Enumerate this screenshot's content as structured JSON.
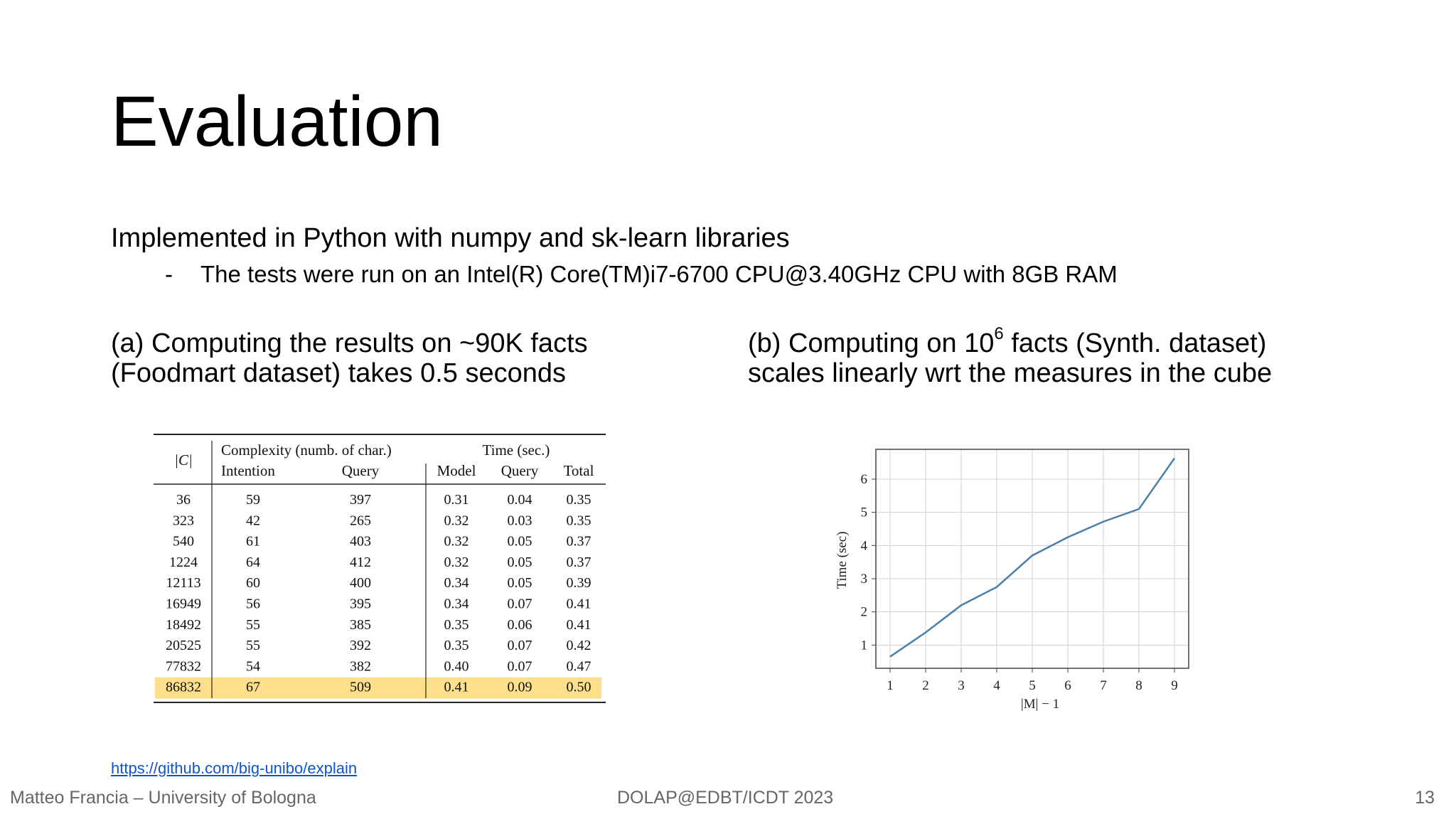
{
  "slide": {
    "title": "Evaluation",
    "intro": "Implemented in Python with numpy and sk-learn libraries",
    "bullet_dash": "-",
    "bullet": "The tests were run on an Intel(R) Core(TM)i7-6700 CPU@3.40GHz CPU with 8GB RAM",
    "caption_a_line1": "(a) Computing the results on ~90K facts",
    "caption_a_line2": "(Foodmart dataset) takes 0.5 seconds",
    "caption_b_pre": "(b) Computing on 10",
    "caption_b_sup": "6",
    "caption_b_post": " facts (Synth. dataset)",
    "caption_b_line2": "scales linearly wrt the measures in the cube",
    "link": "https://github.com/big-unibo/explain"
  },
  "table": {
    "col_c": "|C|",
    "group_complexity": "Complexity (numb. of char.)",
    "group_time": "Time (sec.)",
    "sub_headers": [
      "Intention",
      "Query",
      "Model",
      "Query",
      "Total"
    ],
    "highlight_color": "#ffe08a",
    "rows": [
      [
        "36",
        "59",
        "397",
        "0.31",
        "0.04",
        "0.35"
      ],
      [
        "323",
        "42",
        "265",
        "0.32",
        "0.03",
        "0.35"
      ],
      [
        "540",
        "61",
        "403",
        "0.32",
        "0.05",
        "0.37"
      ],
      [
        "1224",
        "64",
        "412",
        "0.32",
        "0.05",
        "0.37"
      ],
      [
        "12113",
        "60",
        "400",
        "0.34",
        "0.05",
        "0.39"
      ],
      [
        "16949",
        "56",
        "395",
        "0.34",
        "0.07",
        "0.41"
      ],
      [
        "18492",
        "55",
        "385",
        "0.35",
        "0.06",
        "0.41"
      ],
      [
        "20525",
        "55",
        "392",
        "0.35",
        "0.07",
        "0.42"
      ],
      [
        "77832",
        "54",
        "382",
        "0.40",
        "0.07",
        "0.47"
      ],
      [
        "86832",
        "67",
        "509",
        "0.41",
        "0.09",
        "0.50"
      ]
    ],
    "highlighted_row": 9
  },
  "chart_data": {
    "type": "line",
    "x": [
      1,
      2,
      3,
      4,
      5,
      6,
      7,
      8,
      9
    ],
    "series": [
      {
        "values": [
          0.65,
          1.38,
          2.2,
          2.75,
          3.7,
          4.25,
          4.72,
          5.1,
          6.63
        ],
        "color": "#4a7fa8"
      }
    ],
    "xlabel": "|M| − 1",
    "ylabel": "Time (sec)",
    "xticks": [
      "1",
      "2",
      "3",
      "4",
      "5",
      "6",
      "7",
      "8",
      "9"
    ],
    "yticks": [
      "1",
      "2",
      "3",
      "4",
      "5",
      "6"
    ],
    "xlim": [
      0.6,
      9.4
    ],
    "ylim": [
      0.3,
      6.9
    ],
    "grid": true
  },
  "footer": {
    "author": "Matteo Francia – University of Bologna",
    "venue": "DOLAP@EDBT/ICDT 2023",
    "page": "13"
  }
}
